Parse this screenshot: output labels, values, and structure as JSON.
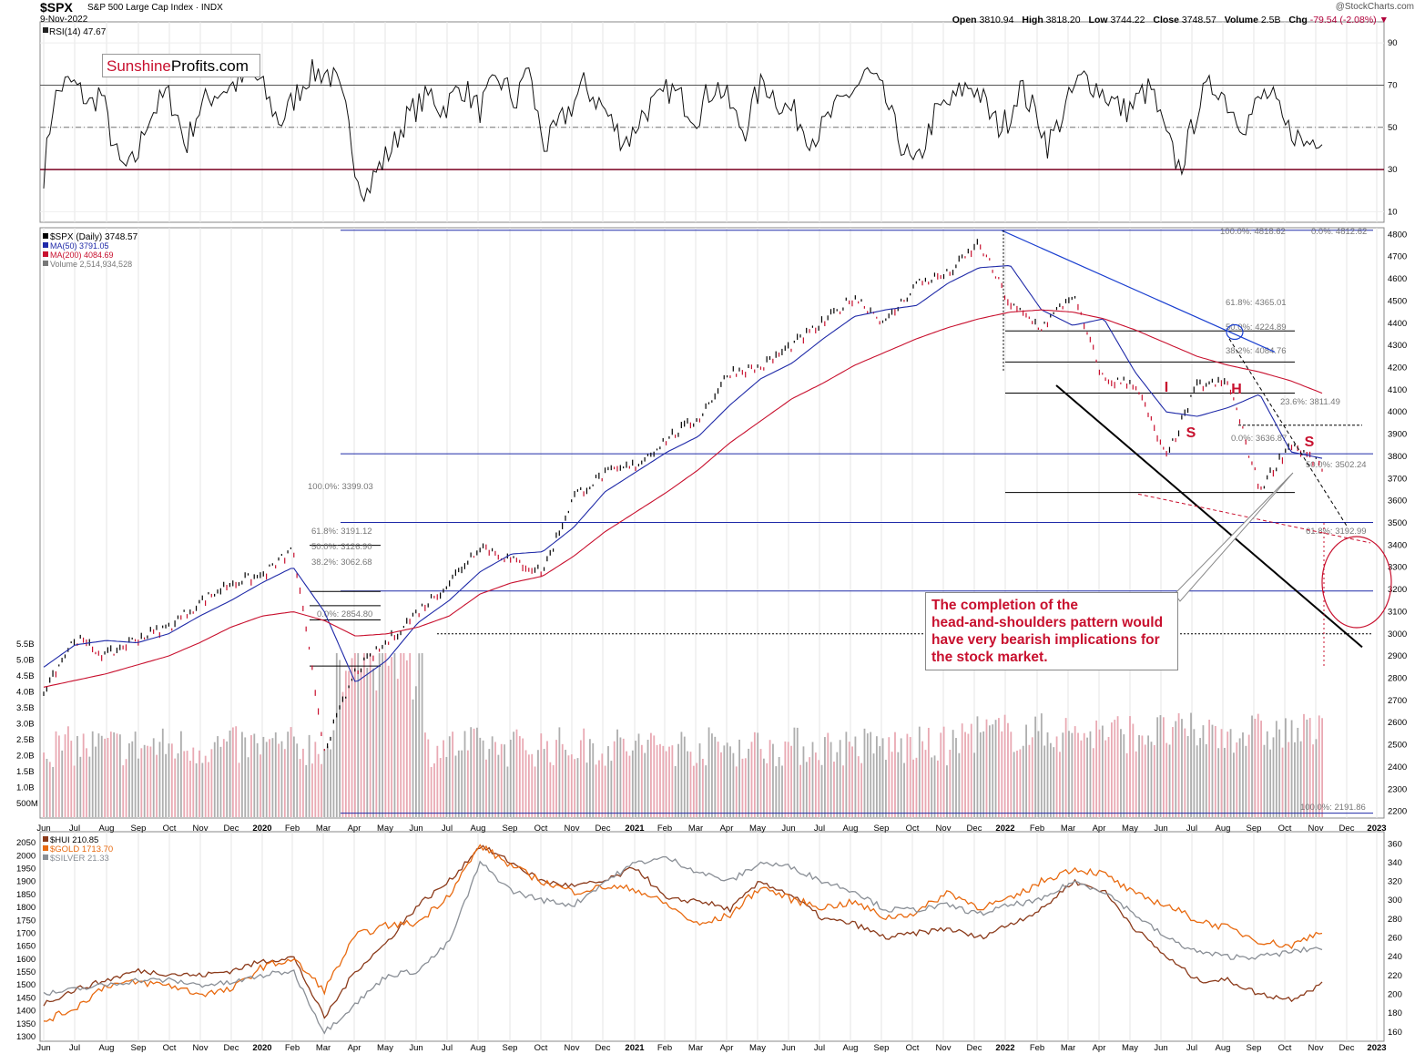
{
  "header": {
    "symbol": "$SPX",
    "description": "S&P 500 Large Cap Index",
    "exchange": "INDX",
    "date": "9-Nov-2022",
    "copyright": "@StockCharts.com",
    "ohlc": {
      "open": "3810.94",
      "high": "3818.20",
      "low": "3744.22",
      "close": "3748.57",
      "volume": "2.5B",
      "chg": "-79.54 (-2.08%)"
    },
    "labels": {
      "open": "Open",
      "high": "High",
      "low": "Low",
      "close": "Close",
      "volume": "Volume",
      "chg": "Chg"
    }
  },
  "logo": {
    "part1": "Sunshine",
    "part2": "Profits.com"
  },
  "callout": {
    "text": "The completion of the\nhead-and-shoulders pattern would\nhave very bearish implications for\nthe stock market."
  },
  "colors": {
    "price_up": "#000000",
    "price_down": "#c8102e",
    "ma50": "#1f2aa8",
    "ma200": "#c8102e",
    "volume_up": "#a0a0a0",
    "volume_down": "#e59aa6",
    "hui": "#8b3a1a",
    "gold": "#e86a10",
    "silver": "#8a8f96",
    "annotation": "#c8102e",
    "level_line": "#1f2aa8",
    "rsi_overbought_fill": "#4a7a48",
    "rsi_oversold_fill": "#c8102e"
  },
  "chart_data": [
    {
      "type": "line",
      "panel": "rsi",
      "legend": [
        "RSI(14) 47.67"
      ],
      "y_ticks": [
        10,
        30,
        50,
        70,
        90
      ],
      "ylim": [
        5,
        100
      ],
      "reference_lines": [
        30,
        50,
        70
      ],
      "series": [
        {
          "name": "RSI(14)",
          "values": [
            28,
            62,
            70,
            71,
            66,
            60,
            68,
            48,
            32,
            30,
            38,
            55,
            60,
            66,
            58,
            40,
            55,
            62,
            66,
            68,
            70,
            72,
            75,
            70,
            60,
            52,
            60,
            68,
            75,
            76,
            76,
            70,
            55,
            30,
            18,
            28,
            35,
            42,
            52,
            58,
            62,
            66,
            58,
            63,
            70,
            65,
            58,
            66,
            73,
            68,
            60,
            82,
            58,
            40,
            48,
            55,
            62,
            70,
            65,
            60,
            52,
            45,
            45,
            55,
            60,
            62,
            68,
            65,
            60,
            55,
            65,
            70,
            65,
            55,
            48,
            62,
            72,
            66,
            60,
            58,
            52,
            45,
            48,
            55,
            60,
            66,
            70,
            76,
            70,
            62,
            48,
            38,
            30,
            42,
            55,
            60,
            62,
            68,
            70,
            65,
            55,
            50,
            55,
            70,
            62,
            55,
            42,
            50,
            60,
            70,
            74,
            70,
            66,
            62,
            58,
            60,
            66,
            68,
            52,
            40,
            30,
            45,
            62,
            68,
            70,
            62,
            55,
            52,
            60,
            66,
            62,
            50,
            48,
            42,
            44,
            47.67
          ]
        }
      ]
    },
    {
      "type": "line",
      "panel": "price",
      "title": "$SPX (Daily) 3748.57",
      "legend": [
        "$SPX (Daily) 3748.57",
        "MA(50) 3791.05",
        "MA(200) 4084.69",
        "Volume 2,514,934,528"
      ],
      "x_ticks": [
        "Jun",
        "Jul",
        "Aug",
        "Sep",
        "Oct",
        "Nov",
        "Dec",
        "2020",
        "Feb",
        "Mar",
        "Apr",
        "May",
        "Jun",
        "Jul",
        "Aug",
        "Sep",
        "Oct",
        "Nov",
        "Dec",
        "2021",
        "Feb",
        "Mar",
        "Apr",
        "May",
        "Jun",
        "Jul",
        "Aug",
        "Sep",
        "Oct",
        "Nov",
        "Dec",
        "2022",
        "Feb",
        "Mar",
        "Apr",
        "May",
        "Jun",
        "Jul",
        "Aug",
        "Sep",
        "Oct",
        "Nov",
        "Dec",
        "2023"
      ],
      "y_ticks": [
        2200,
        2300,
        2400,
        2500,
        2600,
        2700,
        2800,
        2900,
        3000,
        3100,
        3200,
        3300,
        3400,
        3500,
        3600,
        3700,
        3800,
        3900,
        4000,
        4100,
        4200,
        4300,
        4400,
        4500,
        4600,
        4700,
        4800
      ],
      "ylim": [
        2170,
        4830
      ],
      "volume_ticks": [
        "500M",
        "1.0B",
        "1.5B",
        "2.0B",
        "2.5B",
        "3.0B",
        "3.5B",
        "4.0B",
        "4.5B",
        "5.0B",
        "5.5B"
      ],
      "series": [
        {
          "name": "$SPX",
          "x": [
            "Jun 2019",
            "Jul 2019",
            "Aug 2019",
            "Sep 2019",
            "Oct 2019",
            "Nov 2019",
            "Dec 2019",
            "Jan 2020",
            "Feb 2020",
            "Mar 2020",
            "Apr 2020",
            "May 2020",
            "Jun 2020",
            "Jul 2020",
            "Aug 2020",
            "Sep 2020",
            "Oct 2020",
            "Nov 2020",
            "Dec 2020",
            "Jan 2021",
            "Feb 2021",
            "Mar 2021",
            "Apr 2021",
            "May 2021",
            "Jun 2021",
            "Jul 2021",
            "Aug 2021",
            "Sep 2021",
            "Oct 2021",
            "Nov 2021",
            "Dec 2021",
            "Jan 2022",
            "Feb 2022",
            "Mar 2022",
            "Apr 2022",
            "May 2022",
            "Jun 2022",
            "Jul 2022",
            "Aug 2022",
            "Sep 2022",
            "Oct 2022",
            "Nov 2022"
          ],
          "values": [
            2750,
            2980,
            2900,
            2980,
            3030,
            3140,
            3230,
            3260,
            3380,
            2480,
            2830,
            2960,
            3100,
            3230,
            3400,
            3330,
            3280,
            3620,
            3720,
            3760,
            3880,
            3970,
            4180,
            4200,
            4300,
            4400,
            4520,
            4400,
            4580,
            4620,
            4760,
            4480,
            4380,
            4530,
            4140,
            4130,
            3790,
            4120,
            4130,
            3650,
            3860,
            3748.57
          ]
        },
        {
          "name": "MA(50)",
          "values": [
            2850,
            2950,
            2970,
            2960,
            3000,
            3080,
            3150,
            3230,
            3300,
            3100,
            2780,
            2880,
            3050,
            3150,
            3280,
            3360,
            3370,
            3480,
            3640,
            3730,
            3820,
            3890,
            4030,
            4150,
            4220,
            4330,
            4430,
            4460,
            4480,
            4580,
            4650,
            4660,
            4460,
            4390,
            4420,
            4180,
            4000,
            3980,
            4020,
            4080,
            3820,
            3791.05
          ]
        },
        {
          "name": "MA(200)",
          "values": [
            2760,
            2790,
            2820,
            2860,
            2900,
            2960,
            3030,
            3080,
            3100,
            3060,
            2990,
            3000,
            3030,
            3080,
            3180,
            3230,
            3260,
            3350,
            3460,
            3550,
            3640,
            3740,
            3860,
            3960,
            4060,
            4130,
            4210,
            4270,
            4330,
            4380,
            4420,
            4450,
            4460,
            4450,
            4420,
            4370,
            4310,
            4250,
            4210,
            4180,
            4140,
            4084.69
          ]
        }
      ],
      "horizontal_levels": [
        {
          "label": "100.0%: 4818.62",
          "value": 4818.62
        },
        {
          "label": "0.0%: 4812.62",
          "value": 4812.62
        },
        {
          "label": "61.8%: 4365.01",
          "value": 4365.01
        },
        {
          "label": "50.0%: 4224.89",
          "value": 4224.89
        },
        {
          "label": "38.2%: 4084.76",
          "value": 4084.76
        },
        {
          "label": "23.6%: 3811.49",
          "value": 3811.49
        },
        {
          "label": "0.0%: 3636.87",
          "value": 3636.87
        },
        {
          "label": "50.0%: 3502.24",
          "value": 3502.24
        },
        {
          "label": "61.8%: 3192.99",
          "value": 3192.99
        },
        {
          "label": "100.0%: 3399.03",
          "value": 3399.03
        },
        {
          "label": "61.8%: 3191.12",
          "value": 3191.12
        },
        {
          "label": "50.0%: 3126.90",
          "value": 3126.9
        },
        {
          "label": "38.2%: 3062.68",
          "value": 3062.68
        },
        {
          "label": "0.0%: 2854.80",
          "value": 2854.8
        },
        {
          "label": "100.0%: 2191.86",
          "value": 2191.86
        }
      ],
      "pattern_labels": [
        "I",
        "S",
        "H",
        "S"
      ]
    },
    {
      "type": "line",
      "panel": "precious_metals",
      "legend": [
        "$HUI 210.85",
        "$GOLD 1713.70",
        "$SILVER 21.33"
      ],
      "x_ticks": [
        "Jun",
        "Jul",
        "Aug",
        "Sep",
        "Oct",
        "Nov",
        "Dec",
        "2020",
        "Feb",
        "Mar",
        "Apr",
        "May",
        "Jun",
        "Jul",
        "Aug",
        "Sep",
        "Oct",
        "Nov",
        "Dec",
        "2021",
        "Feb",
        "Mar",
        "Apr",
        "May",
        "Jun",
        "Jul",
        "Aug",
        "Sep",
        "Oct",
        "Nov",
        "Dec",
        "2022",
        "Feb",
        "Mar",
        "Apr",
        "May",
        "Jun",
        "Jul",
        "Aug",
        "Sep",
        "Oct",
        "Nov",
        "Dec",
        "2023"
      ],
      "y_ticks_left": [
        1300,
        1350,
        1400,
        1450,
        1500,
        1550,
        1600,
        1650,
        1700,
        1750,
        1800,
        1850,
        1900,
        1950,
        2000,
        2050
      ],
      "y_ticks_right": [
        160,
        180,
        200,
        220,
        240,
        260,
        280,
        300,
        320,
        340,
        360
      ],
      "ylim_left": [
        1300,
        2075
      ],
      "ylim_right": [
        155,
        368
      ],
      "series": [
        {
          "name": "$HUI",
          "axis": "right",
          "values": [
            190,
            205,
            215,
            225,
            222,
            220,
            225,
            235,
            240,
            175,
            225,
            255,
            295,
            320,
            358,
            340,
            320,
            315,
            320,
            335,
            300,
            300,
            290,
            320,
            305,
            280,
            275,
            260,
            265,
            270,
            260,
            275,
            290,
            320,
            310,
            270,
            240,
            215,
            215,
            200,
            195,
            210.85
          ]
        },
        {
          "name": "$GOLD",
          "axis": "left",
          "values": [
            1360,
            1410,
            1500,
            1510,
            1500,
            1465,
            1480,
            1570,
            1600,
            1480,
            1690,
            1730,
            1740,
            1850,
            2040,
            1960,
            1900,
            1860,
            1880,
            1870,
            1810,
            1730,
            1770,
            1880,
            1830,
            1800,
            1820,
            1760,
            1780,
            1860,
            1800,
            1830,
            1900,
            1950,
            1930,
            1850,
            1810,
            1750,
            1720,
            1670,
            1650,
            1713.7
          ]
        },
        {
          "name": "$SILVER",
          "axis": "right",
          "values": [
            200,
            205,
            210,
            215,
            215,
            210,
            212,
            220,
            225,
            160,
            190,
            220,
            225,
            255,
            340,
            310,
            300,
            295,
            320,
            340,
            345,
            330,
            320,
            340,
            335,
            320,
            310,
            290,
            290,
            295,
            285,
            295,
            300,
            320,
            310,
            285,
            260,
            245,
            240,
            240,
            245,
            250
          ]
        }
      ]
    }
  ]
}
